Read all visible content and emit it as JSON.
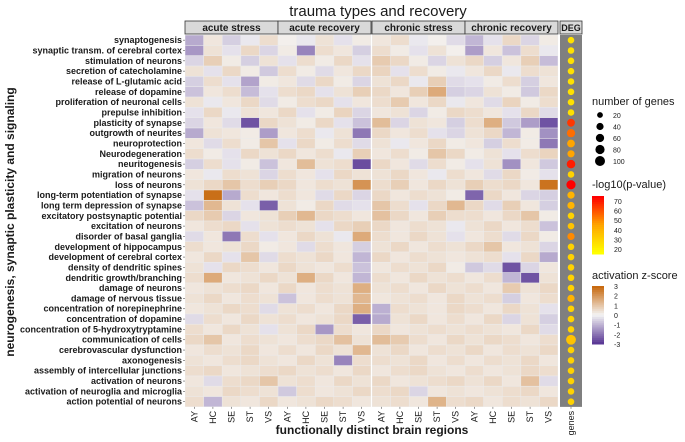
{
  "chart_data": {
    "type": "heatmap",
    "title": "trauma types and recovery",
    "xlabel": "functionally distinct brain regions",
    "ylabel": "neurogenesis, synaptic plasticity and signaling",
    "panels": [
      "acute  stress",
      "acute recovery",
      "chronic  stress",
      "chronic recovery"
    ],
    "regions": [
      "AY",
      "HC",
      "SE",
      "ST",
      "VS"
    ],
    "deg_panel": "DEG",
    "deg_axis_label": "genes",
    "rows": [
      "synaptogenesis",
      "synaptic transm. of cerebral cortex",
      "stimulation of neurons",
      "secretion of catecholamine",
      "release of L-glutamic acid",
      "release of dopamine",
      "proliferation of neuronal cells",
      "prepulse inhibition",
      "plasticity of synapse",
      "outgrowth of neurites",
      "neuroprotection",
      "Neurodegeneration",
      "neuritogenesis",
      "migration of neurons",
      "loss of neurons",
      "long-term potentiation of synapse",
      "long term depression of synapse",
      "excitatory postsynaptic potential",
      "excitation of neurons",
      "disorder of basal ganglia",
      "development of hippocampus",
      "development of cerebral cortex",
      "density of dendritic spines",
      "dendritic growth/branching",
      "damage of neurons",
      "damage of nervous tissue",
      "concentration of norepinephrine",
      "concentration of dopamine",
      "concentration of 5-hydroxytryptamine",
      "communication of cells",
      "cerebrovascular dysfunction",
      "axonogenesis",
      "assembly of intercellular junctions",
      "activation of neurons",
      "activation of neuroglia and microglia",
      "action potential of neurons"
    ],
    "z_scores": [
      [
        [
          -1.2,
          0.3,
          -0.6,
          -0.2,
          0.5
        ],
        [
          0.1,
          -0.2,
          0.4,
          -0.3,
          0.2
        ],
        [
          0.3,
          0.5,
          -0.2,
          0.1,
          -0.4
        ],
        [
          -1.0,
          -0.3,
          0.6,
          -0.5,
          0.2
        ]
      ],
      [
        [
          -1.5,
          0.4,
          -0.3,
          0.6,
          -0.5
        ],
        [
          0.2,
          -1.8,
          0.5,
          0.3,
          -0.6
        ],
        [
          0.5,
          0.2,
          -0.3,
          0.4,
          0.1
        ],
        [
          -1.4,
          0.3,
          -0.8,
          0.5,
          -0.2
        ]
      ],
      [
        [
          -0.5,
          0.8,
          0.2,
          -0.6,
          0.4
        ],
        [
          -0.3,
          0.5,
          0.2,
          0.6,
          -0.3
        ],
        [
          0.9,
          0.6,
          0.2,
          -0.5,
          0.4
        ],
        [
          0.6,
          -0.6,
          0.3,
          0.8,
          -0.9
        ]
      ],
      [
        [
          0.4,
          -0.3,
          0.6,
          0.2,
          -0.7
        ],
        [
          0.5,
          0.2,
          -0.4,
          0.3,
          0.6
        ],
        [
          0.7,
          -0.3,
          0.5,
          0.2,
          -0.2
        ],
        [
          0.3,
          0.6,
          -0.2,
          0.5,
          0.4
        ]
      ],
      [
        [
          -0.6,
          0.5,
          -0.3,
          -1.3,
          0.2
        ],
        [
          0.3,
          -0.4,
          0.6,
          0.2,
          -0.5
        ],
        [
          0.4,
          0.6,
          -0.2,
          0.8,
          -0.4
        ],
        [
          -0.3,
          0.2,
          0.5,
          -0.6,
          0.3
        ]
      ],
      [
        [
          -0.8,
          0.3,
          0.5,
          -0.9,
          -0.3
        ],
        [
          0.5,
          0.6,
          -0.3,
          0.4,
          0.8
        ],
        [
          0.6,
          0.3,
          0.8,
          1.6,
          -0.6
        ],
        [
          -0.5,
          0.4,
          0.2,
          -0.7,
          0.6
        ]
      ],
      [
        [
          0.4,
          -0.2,
          0.3,
          0.6,
          -0.4
        ],
        [
          0.2,
          0.5,
          0.6,
          -0.3,
          0.3
        ],
        [
          0.5,
          0.9,
          0.3,
          0.6,
          -0.2
        ],
        [
          0.3,
          -0.4,
          0.7,
          0.2,
          0.5
        ]
      ],
      [
        [
          -0.3,
          0.6,
          -0.2,
          0.4,
          0.3
        ],
        [
          0.6,
          -0.3,
          0.2,
          0.7,
          -0.5
        ],
        [
          0.3,
          0.4,
          -0.5,
          0.2,
          0.6
        ],
        [
          0.5,
          0.3,
          -0.3,
          0.6,
          -0.4
        ]
      ],
      [
        [
          -0.5,
          0.3,
          -0.4,
          -2.6,
          0.6
        ],
        [
          0.4,
          0.2,
          0.6,
          -0.3,
          -0.8
        ],
        [
          1.2,
          -0.5,
          0.4,
          0.3,
          -0.6
        ],
        [
          0.5,
          1.5,
          -0.7,
          -1.4,
          -2.6
        ]
      ],
      [
        [
          -1.2,
          0.4,
          0.3,
          0.2,
          -1.4
        ],
        [
          0.3,
          0.5,
          -0.2,
          0.4,
          -2.0
        ],
        [
          0.6,
          0.3,
          0.5,
          -0.3,
          -0.5
        ],
        [
          0.4,
          0.6,
          -1.0,
          0.2,
          -1.6
        ]
      ],
      [
        [
          0.3,
          -0.4,
          0.5,
          0.2,
          1.0
        ],
        [
          -0.3,
          0.6,
          0.2,
          0.5,
          -0.4
        ],
        [
          0.4,
          -0.2,
          0.3,
          0.6,
          0.2
        ],
        [
          0.3,
          -0.6,
          0.5,
          0.2,
          -2.0
        ]
      ],
      [
        [
          0.5,
          0.2,
          -0.3,
          0.6,
          0.4
        ],
        [
          0.6,
          0.3,
          0.5,
          -0.2,
          0.8
        ],
        [
          0.3,
          0.5,
          0.2,
          1.0,
          0.6
        ],
        [
          0.2,
          0.4,
          -0.3,
          0.5,
          0.7
        ]
      ],
      [
        [
          -0.6,
          0.5,
          -0.3,
          0.2,
          -0.8
        ],
        [
          0.3,
          1.2,
          0.4,
          0.5,
          -2.7
        ],
        [
          0.6,
          0.3,
          -0.4,
          0.5,
          0.2
        ],
        [
          -0.3,
          0.4,
          -1.6,
          0.3,
          -0.7
        ]
      ],
      [
        [
          0.3,
          -0.2,
          0.5,
          0.4,
          -0.5
        ],
        [
          0.5,
          0.3,
          -0.3,
          0.6,
          0.4
        ],
        [
          0.4,
          0.6,
          0.3,
          -0.2,
          0.5
        ],
        [
          0.3,
          -0.4,
          0.6,
          0.2,
          -0.3
        ]
      ],
      [
        [
          0.4,
          0.6,
          1.0,
          0.5,
          0.8
        ],
        [
          0.6,
          0.3,
          0.5,
          0.4,
          2.1
        ],
        [
          0.5,
          0.8,
          0.3,
          0.6,
          0.4
        ],
        [
          0.8,
          0.5,
          0.6,
          0.3,
          2.8
        ]
      ],
      [
        [
          -0.3,
          2.9,
          -1.2,
          0.5,
          0.3
        ],
        [
          0.5,
          0.3,
          -0.4,
          0.6,
          -0.5
        ],
        [
          0.6,
          0.3,
          0.5,
          0.4,
          0.2
        ],
        [
          -2.3,
          0.6,
          0.3,
          -0.5,
          -0.6
        ]
      ],
      [
        [
          -0.8,
          1.3,
          0.4,
          -0.3,
          -2.4
        ],
        [
          0.4,
          0.2,
          0.6,
          -0.4,
          -0.3
        ],
        [
          1.0,
          0.5,
          -0.3,
          0.6,
          1.3
        ],
        [
          0.6,
          -0.4,
          0.8,
          0.3,
          -0.6
        ]
      ],
      [
        [
          0.6,
          0.9,
          -0.5,
          0.3,
          0.4
        ],
        [
          0.8,
          1.3,
          0.6,
          0.5,
          0.3
        ],
        [
          1.1,
          0.6,
          0.3,
          0.8,
          0.5
        ],
        [
          0.5,
          0.3,
          0.6,
          1.0,
          0.2
        ]
      ],
      [
        [
          0.3,
          0.5,
          0.6,
          -0.3,
          0.4
        ],
        [
          0.5,
          0.4,
          -0.3,
          0.6,
          0.8
        ],
        [
          0.6,
          0.3,
          0.5,
          0.4,
          -0.2
        ],
        [
          0.4,
          0.6,
          0.3,
          0.5,
          -0.8
        ]
      ],
      [
        [
          -0.4,
          0.3,
          -2.0,
          0.5,
          -0.3
        ],
        [
          0.3,
          0.6,
          0.4,
          -0.2,
          1.6
        ],
        [
          0.5,
          0.3,
          0.6,
          0.4,
          -0.3
        ],
        [
          0.3,
          0.5,
          -0.4,
          0.6,
          0.2
        ]
      ],
      [
        [
          0.5,
          0.3,
          0.4,
          0.6,
          0.2
        ],
        [
          0.3,
          -0.4,
          0.5,
          0.3,
          -0.6
        ],
        [
          0.4,
          0.6,
          0.3,
          0.5,
          0.4
        ],
        [
          0.6,
          1.0,
          0.3,
          0.4,
          -0.5
        ]
      ],
      [
        [
          0.3,
          0.6,
          -0.3,
          1.0,
          -0.4
        ],
        [
          0.5,
          0.4,
          0.6,
          0.3,
          -1.0
        ],
        [
          0.6,
          0.3,
          0.5,
          0.4,
          0.3
        ],
        [
          0.4,
          0.5,
          -0.3,
          0.6,
          -1.2
        ]
      ],
      [
        [
          0.4,
          -0.3,
          0.6,
          0.5,
          0.3
        ],
        [
          0.6,
          0.4,
          0.3,
          0.5,
          -0.8
        ],
        [
          0.3,
          0.5,
          0.4,
          0.6,
          0.2
        ],
        [
          -0.7,
          -0.4,
          -2.6,
          -0.5,
          0.3
        ]
      ],
      [
        [
          0.5,
          1.6,
          0.3,
          0.4,
          0.6
        ],
        [
          0.4,
          1.5,
          0.6,
          0.3,
          -1.0
        ],
        [
          0.5,
          0.3,
          0.6,
          0.4,
          0.5
        ],
        [
          0.3,
          0.5,
          -1.0,
          -2.6,
          0.4
        ]
      ],
      [
        [
          0.3,
          0.4,
          0.5,
          0.6,
          0.3
        ],
        [
          0.6,
          0.3,
          0.5,
          0.4,
          1.5
        ],
        [
          0.4,
          0.5,
          0.3,
          0.6,
          0.4
        ],
        [
          0.5,
          0.3,
          0.9,
          0.4,
          0.6
        ]
      ],
      [
        [
          0.4,
          0.6,
          0.3,
          0.5,
          0.4
        ],
        [
          -0.8,
          0.3,
          0.5,
          0.4,
          1.3
        ],
        [
          0.3,
          0.4,
          0.5,
          0.3,
          0.6
        ],
        [
          0.4,
          0.5,
          -0.6,
          0.3,
          0.5
        ]
      ],
      [
        [
          0.3,
          0.4,
          0.6,
          0.5,
          -0.4
        ],
        [
          0.4,
          0.5,
          0.3,
          0.6,
          1.5
        ],
        [
          -1.1,
          0.5,
          0.4,
          0.3,
          0.6
        ],
        [
          0.5,
          0.3,
          0.6,
          0.4,
          -0.3
        ]
      ],
      [
        [
          -0.4,
          0.5,
          0.3,
          0.6,
          0.4
        ],
        [
          0.5,
          0.3,
          0.4,
          0.6,
          -2.4
        ],
        [
          -1.2,
          0.4,
          0.6,
          0.3,
          0.5
        ],
        [
          0.3,
          0.6,
          -0.5,
          0.4,
          -0.6
        ]
      ],
      [
        [
          0.5,
          0.3,
          0.6,
          0.4,
          -0.3
        ],
        [
          0.4,
          0.6,
          -1.5,
          0.5,
          0.3
        ],
        [
          0.6,
          0.3,
          0.4,
          0.5,
          0.4
        ],
        [
          0.5,
          0.4,
          0.3,
          0.6,
          -0.4
        ]
      ],
      [
        [
          0.6,
          1.0,
          0.3,
          0.5,
          0.4
        ],
        [
          0.3,
          0.5,
          0.6,
          1.1,
          0.4
        ],
        [
          1.2,
          0.9,
          0.5,
          0.3,
          0.6
        ],
        [
          0.4,
          0.6,
          0.5,
          0.3,
          0.5
        ]
      ],
      [
        [
          0.3,
          0.5,
          0.4,
          0.6,
          0.3
        ],
        [
          0.5,
          0.3,
          0.6,
          0.4,
          1.3
        ],
        [
          0.4,
          0.6,
          0.3,
          0.5,
          0.4
        ],
        [
          0.6,
          0.3,
          0.5,
          0.4,
          0.6
        ]
      ],
      [
        [
          0.4,
          0.3,
          0.5,
          0.6,
          0.4
        ],
        [
          0.3,
          0.6,
          0.4,
          -1.8,
          0.5
        ],
        [
          0.5,
          0.4,
          0.6,
          0.3,
          0.5
        ],
        [
          0.3,
          0.5,
          0.4,
          0.6,
          0.3
        ]
      ],
      [
        [
          0.5,
          0.6,
          0.3,
          0.4,
          0.5
        ],
        [
          0.6,
          0.4,
          0.5,
          0.3,
          0.6
        ],
        [
          0.3,
          0.5,
          0.6,
          0.4,
          0.3
        ],
        [
          0.5,
          0.3,
          0.4,
          0.6,
          0.5
        ]
      ],
      [
        [
          0.3,
          -0.4,
          0.5,
          0.6,
          1.0
        ],
        [
          0.4,
          0.5,
          0.3,
          0.6,
          0.4
        ],
        [
          0.6,
          0.3,
          0.4,
          0.5,
          0.6
        ],
        [
          0.4,
          0.6,
          0.3,
          1.1,
          -0.4
        ]
      ],
      [
        [
          0.4,
          0.3,
          0.6,
          0.5,
          0.4
        ],
        [
          -0.7,
          0.5,
          0.3,
          0.4,
          0.6
        ],
        [
          0.5,
          0.6,
          -0.5,
          0.3,
          0.4
        ],
        [
          0.3,
          0.4,
          0.5,
          0.6,
          0.3
        ]
      ],
      [
        [
          0.5,
          -1.0,
          0.4,
          0.3,
          0.6
        ],
        [
          0.3,
          0.4,
          0.6,
          0.5,
          0.3
        ],
        [
          0.4,
          0.5,
          0.3,
          1.4,
          0.5
        ],
        [
          0.6,
          0.3,
          0.5,
          0.4,
          0.6
        ]
      ]
    ],
    "deg": {
      "genes": [
        30,
        30,
        30,
        30,
        30,
        30,
        30,
        30,
        50,
        60,
        50,
        40,
        65,
        30,
        80,
        40,
        40,
        30,
        30,
        40,
        30,
        30,
        30,
        30,
        30,
        40,
        30,
        30,
        30,
        95,
        30,
        30,
        30,
        30,
        30,
        30
      ],
      "neglog10p": [
        25,
        25,
        25,
        25,
        25,
        25,
        25,
        25,
        65,
        55,
        45,
        45,
        70,
        30,
        75,
        40,
        40,
        30,
        35,
        50,
        30,
        30,
        30,
        30,
        30,
        40,
        30,
        30,
        30,
        35,
        30,
        30,
        30,
        30,
        30,
        30
      ]
    },
    "legend_size": {
      "title": "number of genes",
      "values": [
        20,
        40,
        60,
        80,
        100
      ]
    },
    "legend_p": {
      "title": "-log10(p-value)",
      "ticks": [
        70,
        60,
        50,
        40,
        30,
        20
      ],
      "range": [
        15,
        75
      ],
      "colors": [
        "#ffff00",
        "#ffa500",
        "#ff0000"
      ]
    },
    "legend_z": {
      "title": "activation z-score",
      "ticks": [
        3,
        2,
        1,
        0,
        -1,
        -2,
        -3
      ],
      "range": [
        -3,
        3
      ],
      "colors": [
        "#5b3a96",
        "#f4f4f4",
        "#c86a10"
      ]
    },
    "colors": {
      "panel_bg": "#ebebeb",
      "deg_bg": "#7f7f7f",
      "strip_bg": "#d9d9d9",
      "strip_border": "#333333",
      "text": "#1a1a1a"
    }
  }
}
